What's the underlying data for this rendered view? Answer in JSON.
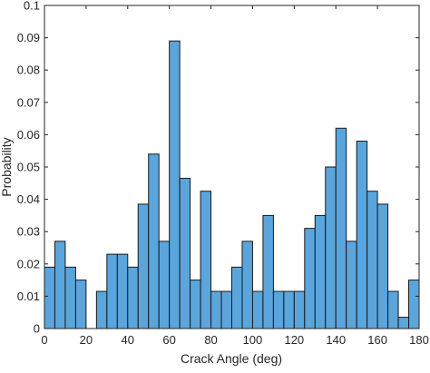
{
  "chart_data": {
    "type": "bar",
    "xlabel": "Crack Angle (deg)",
    "ylabel": "Probability",
    "xlim": [
      0,
      180
    ],
    "ylim": [
      0,
      0.1
    ],
    "x_ticks": [
      "0",
      "20",
      "40",
      "60",
      "80",
      "100",
      "120",
      "140",
      "160",
      "180"
    ],
    "y_ticks": [
      "0",
      "0.01",
      "0.02",
      "0.03",
      "0.04",
      "0.05",
      "0.06",
      "0.07",
      "0.08",
      "0.09",
      "0.1"
    ],
    "bin_width": 5,
    "grid": false,
    "bar_color": "#5aa5dc",
    "edge_color": "#1a1a1a",
    "bins": [
      {
        "start": 0,
        "value": 0.019
      },
      {
        "start": 5,
        "value": 0.027
      },
      {
        "start": 10,
        "value": 0.019
      },
      {
        "start": 15,
        "value": 0.015
      },
      {
        "start": 20,
        "value": 0.0
      },
      {
        "start": 25,
        "value": 0.0115
      },
      {
        "start": 30,
        "value": 0.023
      },
      {
        "start": 35,
        "value": 0.023
      },
      {
        "start": 40,
        "value": 0.019
      },
      {
        "start": 45,
        "value": 0.0385
      },
      {
        "start": 50,
        "value": 0.054
      },
      {
        "start": 55,
        "value": 0.027
      },
      {
        "start": 60,
        "value": 0.089
      },
      {
        "start": 65,
        "value": 0.0465
      },
      {
        "start": 70,
        "value": 0.015
      },
      {
        "start": 75,
        "value": 0.0425
      },
      {
        "start": 80,
        "value": 0.0115
      },
      {
        "start": 85,
        "value": 0.0115
      },
      {
        "start": 90,
        "value": 0.019
      },
      {
        "start": 95,
        "value": 0.027
      },
      {
        "start": 100,
        "value": 0.0115
      },
      {
        "start": 105,
        "value": 0.035
      },
      {
        "start": 110,
        "value": 0.0115
      },
      {
        "start": 115,
        "value": 0.0115
      },
      {
        "start": 120,
        "value": 0.0115
      },
      {
        "start": 125,
        "value": 0.031
      },
      {
        "start": 130,
        "value": 0.035
      },
      {
        "start": 135,
        "value": 0.05
      },
      {
        "start": 140,
        "value": 0.062
      },
      {
        "start": 145,
        "value": 0.027
      },
      {
        "start": 150,
        "value": 0.058
      },
      {
        "start": 155,
        "value": 0.0425
      },
      {
        "start": 160,
        "value": 0.0385
      },
      {
        "start": 165,
        "value": 0.0115
      },
      {
        "start": 170,
        "value": 0.0035
      },
      {
        "start": 175,
        "value": 0.015
      }
    ]
  }
}
